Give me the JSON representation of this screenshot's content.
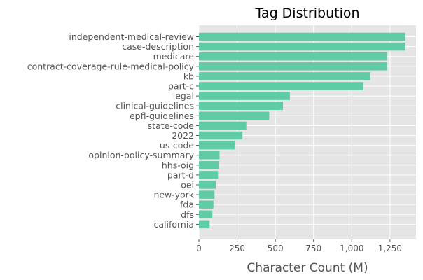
{
  "chart_data": {
    "type": "bar",
    "orientation": "horizontal",
    "title": "Tag Distribution",
    "xlabel": "Character Count (M)",
    "ylabel": "",
    "xlim": [
      0,
      1420
    ],
    "xticks": [
      0,
      250,
      500,
      750,
      1000,
      1250
    ],
    "xtick_labels": [
      "0",
      "250",
      "500",
      "750",
      "1,000",
      "1,250"
    ],
    "grid": true,
    "bar_color": "#5fcca6",
    "background_color": "#e5e5e5",
    "categories": [
      "independent-medical-review",
      "case-description",
      "medicare",
      "contract-coverage-rule-medical-policy",
      "kb",
      "part-c",
      "legal",
      "clinical-guidelines",
      "epfl-guidelines",
      "state-code",
      "2022",
      "us-code",
      "opinion-policy-summary",
      "hhs-oig",
      "part-d",
      "oei",
      "new-york",
      "fda",
      "dfs",
      "california"
    ],
    "values": [
      1350,
      1350,
      1230,
      1230,
      1120,
      1075,
      595,
      550,
      460,
      310,
      285,
      235,
      135,
      130,
      125,
      110,
      102,
      95,
      88,
      70
    ]
  }
}
